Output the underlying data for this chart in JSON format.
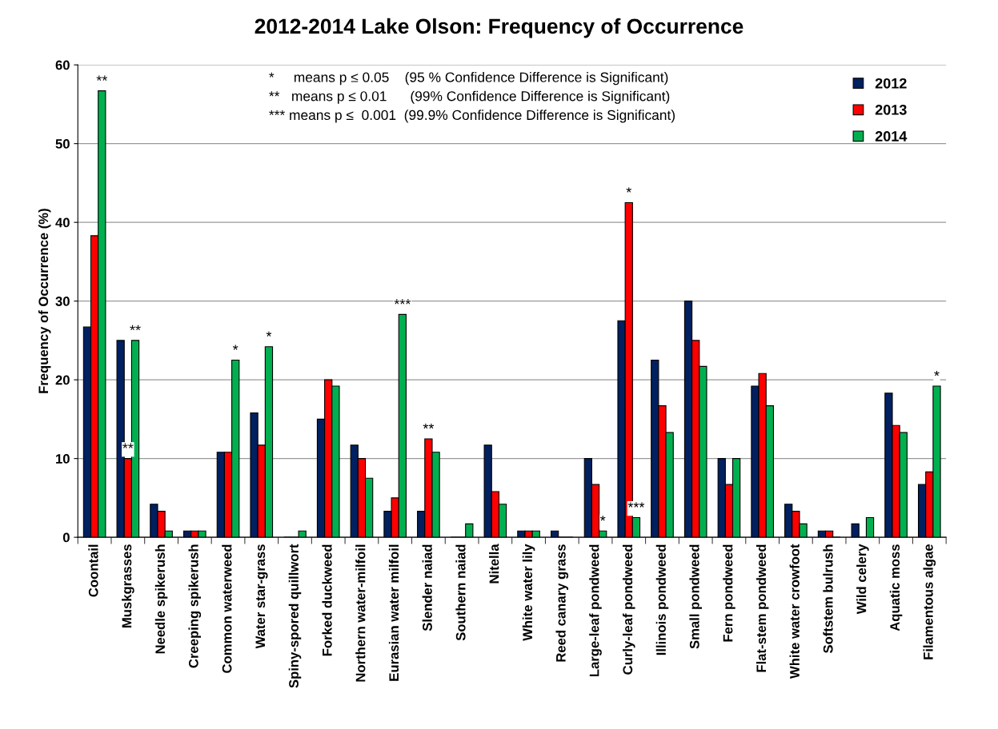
{
  "chart_data": {
    "type": "bar",
    "title": "2012-2014 Lake Olson: Frequency of Occurrence",
    "ylabel": "Frequency of Occurrence (%)",
    "categories": [
      "Coontail",
      "Muskgrasses",
      "Needle spikerush",
      "Creeping spikerush",
      "Common waterweed",
      "Water star-grass",
      "Spiny-spored quillwort",
      "Forked duckweed",
      "Northern water-milfoil",
      "Eurasian water milfoil",
      "Slender naiad",
      "Southern naiad",
      "Nitella",
      "White water lily",
      "Reed canary grass",
      "Large-leaf pondweed",
      "Curly-leaf pondweed",
      "Illinois pondweed",
      "Small pondweed",
      "Fern pondweed",
      "Flat-stem pondweed",
      "White water crowfoot",
      "Softstem bulrush",
      "Wild celery",
      "Aquatic moss",
      "Filamentous algae"
    ],
    "series": [
      {
        "name": "2012",
        "color": "#002060",
        "values": [
          26.7,
          25,
          4.2,
          0.8,
          10.8,
          15.8,
          0,
          15,
          11.7,
          3.3,
          3.3,
          0,
          11.7,
          0.8,
          0.8,
          10,
          27.5,
          22.5,
          30,
          10,
          19.2,
          4.2,
          0.8,
          1.7,
          18.3,
          6.7
        ]
      },
      {
        "name": "2013",
        "color": "#ff0000",
        "values": [
          38.3,
          10,
          3.3,
          0.8,
          10.8,
          11.7,
          0,
          20,
          10,
          5,
          12.5,
          0,
          5.8,
          0.8,
          0,
          6.7,
          42.5,
          16.7,
          25,
          6.7,
          20.8,
          3.3,
          0.8,
          0,
          14.2,
          8.3
        ],
        "value_labels": [
          null,
          "**",
          null,
          null,
          null,
          null,
          null,
          null,
          null,
          null,
          "**",
          null,
          null,
          null,
          null,
          null,
          "*",
          null,
          null,
          null,
          null,
          null,
          null,
          null,
          null,
          null
        ]
      },
      {
        "name": "2014",
        "color": "#00b050",
        "values": [
          56.7,
          25,
          0.8,
          0.8,
          22.5,
          24.2,
          0.8,
          19.2,
          7.5,
          28.3,
          10.8,
          1.7,
          4.2,
          0.8,
          0,
          0.8,
          2.5,
          13.3,
          21.7,
          10,
          16.7,
          1.7,
          0,
          2.5,
          13.3,
          19.2
        ],
        "value_labels": [
          "**",
          "**",
          null,
          null,
          "*",
          "*",
          null,
          null,
          null,
          "***",
          null,
          null,
          null,
          null,
          null,
          "*",
          "***",
          null,
          null,
          null,
          null,
          null,
          null,
          null,
          null,
          "*"
        ]
      }
    ],
    "ylim": [
      0,
      60
    ],
    "yticks": [
      0,
      10,
      20,
      30,
      40,
      50,
      60
    ],
    "grid": "y",
    "legend": "top right",
    "annotations": [
      "*     means p ≤ 0.05    (95 % Confidence Difference is Significant)",
      "**   means p ≤ 0.01      (99% Confidence Difference is Significant)",
      "*** means p ≤  0.001  (99.9% Confidence Difference is Significant)"
    ]
  }
}
